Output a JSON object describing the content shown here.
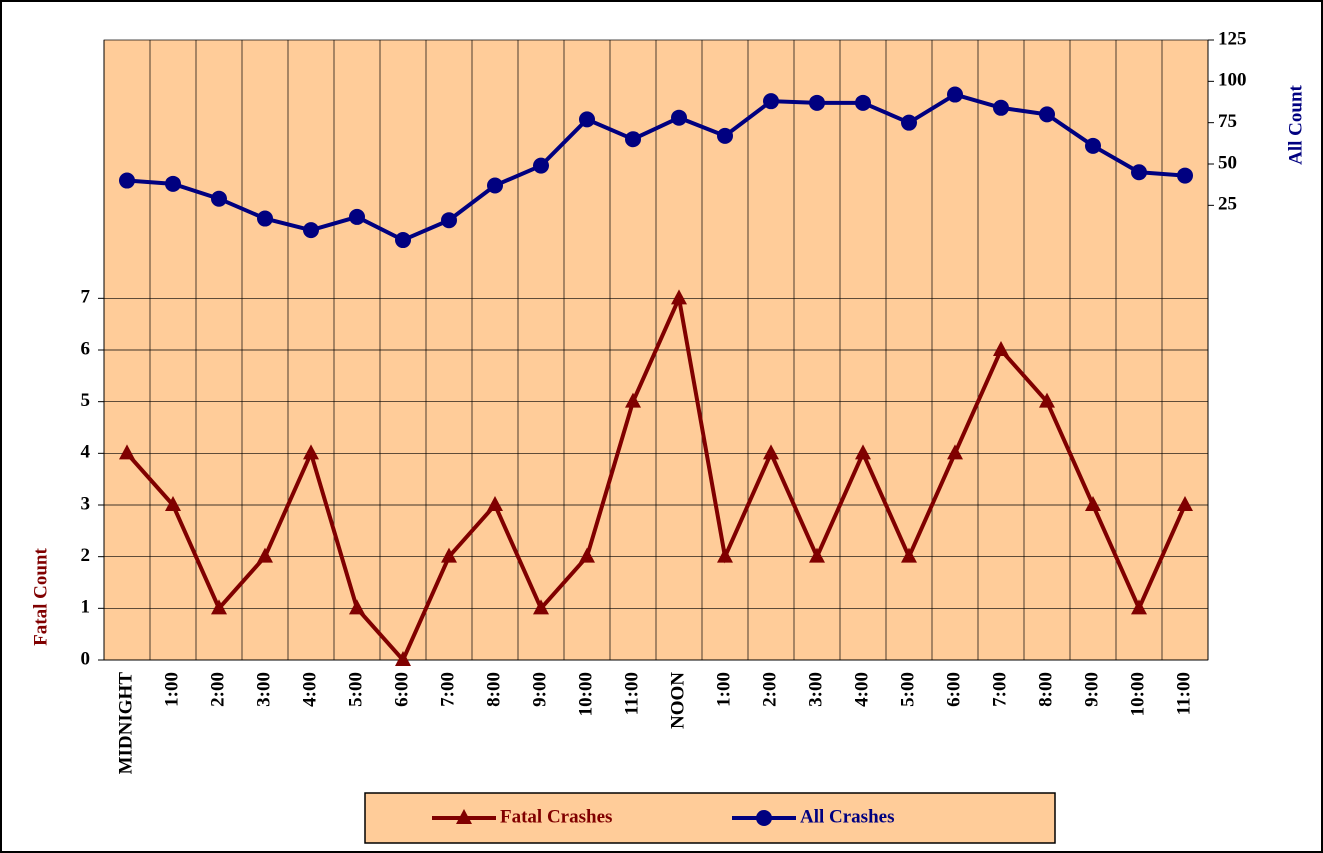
{
  "chart_data": {
    "type": "line",
    "categories": [
      "MIDNIGHT",
      "1:00",
      "2:00",
      "3:00",
      "4:00",
      "5:00",
      "6:00",
      "7:00",
      "8:00",
      "9:00",
      "10:00",
      "11:00",
      "NOON",
      "1:00",
      "2:00",
      "3:00",
      "4:00",
      "5:00",
      "6:00",
      "7:00",
      "8:00",
      "9:00",
      "10:00",
      "11:00"
    ],
    "series": [
      {
        "name": "Fatal Crashes",
        "color": "#800000",
        "marker": "triangle",
        "values": [
          4,
          3,
          1,
          2,
          4,
          1,
          0,
          2,
          3,
          1,
          2,
          5,
          7,
          2,
          4,
          2,
          4,
          2,
          4,
          6,
          5,
          3,
          1,
          3
        ]
      },
      {
        "name": "All Crashes",
        "color": "#000080",
        "marker": "circle",
        "axis": "y2",
        "values": [
          40,
          38,
          29,
          17,
          10,
          18,
          4,
          16,
          37,
          49,
          77,
          65,
          78,
          67,
          88,
          87,
          87,
          75,
          92,
          84,
          80,
          61,
          45,
          43
        ]
      }
    ],
    "ylabel": "Fatal Count",
    "y2label": "All Count",
    "ylim": [
      0,
      12
    ],
    "yticks": [
      0,
      1,
      2,
      3,
      4,
      5,
      6,
      7
    ],
    "y2lim": [
      -250,
      125
    ],
    "y2ticks": [
      25,
      50,
      75,
      100,
      125
    ],
    "grid": true,
    "background": "#ffcc99",
    "legend": "bottom"
  }
}
